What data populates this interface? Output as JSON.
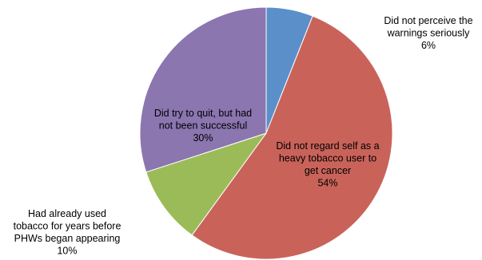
{
  "chart_data": {
    "type": "pie",
    "start_angle_deg": 0,
    "direction": "clockwise",
    "slices": [
      {
        "label_lines": [
          "Did not perceive the",
          "warnings seriously"
        ],
        "value": 6,
        "value_label": "6%",
        "color": "#5B8FC9"
      },
      {
        "label_lines": [
          "Did not regard self as a",
          "heavy tobacco user to",
          "get cancer"
        ],
        "value": 54,
        "value_label": "54%",
        "color": "#C9635A"
      },
      {
        "label_lines": [
          "Had already used",
          "tobacco for years before",
          "PHWs began appearing"
        ],
        "value": 10,
        "value_label": "10%",
        "color": "#9BBB59"
      },
      {
        "label_lines": [
          "Did try to quit, but had",
          "not been successful"
        ],
        "value": 30,
        "value_label": "30%",
        "color": "#8B76B0"
      }
    ]
  }
}
